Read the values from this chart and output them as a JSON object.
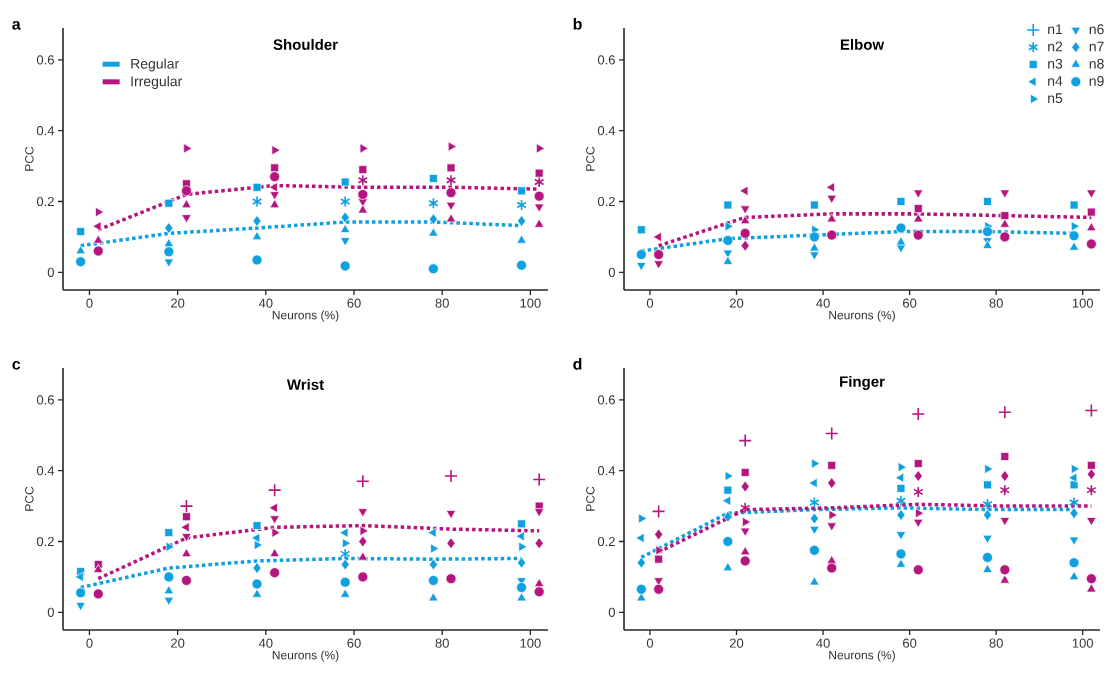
{
  "chart_data": [
    {
      "type": "scatter",
      "title": "Shoulder",
      "xlabel": "Neurons (%)",
      "ylabel": "PCC",
      "annotations": [
        "a"
      ],
      "legend": "top left",
      "xlim": [
        -6,
        104
      ],
      "ylim": [
        -0.05,
        0.69
      ],
      "xticks": [
        0,
        20,
        40,
        60,
        80,
        100
      ],
      "yticks": [
        0,
        0.2,
        0.4,
        0.6
      ],
      "series": [
        {
          "name": "Regular",
          "type": "line",
          "marker": "none",
          "line_style": "dotted",
          "color": "#0fa0e0",
          "x": [
            -2,
            18,
            38,
            58,
            78,
            98
          ],
          "values": [
            0.075,
            0.11,
            0.125,
            0.142,
            0.142,
            0.132
          ]
        },
        {
          "name": "Irregular",
          "type": "line",
          "marker": "none",
          "line_style": "dotted",
          "color": "#b4157f",
          "x": [
            2,
            22,
            42,
            62,
            82,
            102
          ],
          "values": [
            0.12,
            0.22,
            0.245,
            0.24,
            0.24,
            0.235
          ]
        },
        {
          "marker": "cross",
          "color": "#0fa0e0",
          "x": [
            38,
            58,
            78,
            98
          ],
          "values": [
            0.2,
            0.2,
            0.195,
            0.19
          ]
        },
        {
          "marker": "square",
          "color": "#0fa0e0",
          "x": [
            -2,
            18,
            38,
            58,
            78,
            98
          ],
          "values": [
            0.115,
            0.195,
            0.24,
            0.255,
            0.265,
            0.23
          ]
        },
        {
          "marker": "triangle-down",
          "color": "#0fa0e0",
          "x": [
            18,
            58
          ],
          "values": [
            0.03,
            0.09
          ]
        },
        {
          "marker": "diamond",
          "color": "#0fa0e0",
          "x": [
            18,
            38,
            58,
            78,
            98
          ],
          "values": [
            0.125,
            0.145,
            0.155,
            0.15,
            0.145
          ]
        },
        {
          "marker": "triangle",
          "color": "#0fa0e0",
          "x": [
            -2,
            18,
            38,
            58,
            78,
            98
          ],
          "values": [
            0.06,
            0.08,
            0.1,
            0.12,
            0.11,
            0.09
          ]
        },
        {
          "marker": "circle",
          "color": "#0fa0e0",
          "x": [
            -2,
            18,
            38,
            58,
            78,
            98
          ],
          "values": [
            0.03,
            0.058,
            0.035,
            0.018,
            0.01,
            0.02
          ]
        },
        {
          "marker": "cross",
          "color": "#b4157f",
          "x": [
            62,
            82,
            102
          ],
          "values": [
            0.26,
            0.26,
            0.255
          ]
        },
        {
          "marker": "square",
          "color": "#b4157f",
          "x": [
            22,
            42,
            62,
            82,
            102
          ],
          "values": [
            0.25,
            0.295,
            0.29,
            0.295,
            0.28
          ]
        },
        {
          "marker": "triangle-left",
          "color": "#b4157f",
          "x": [
            2,
            42
          ],
          "values": [
            0.13,
            0.24
          ]
        },
        {
          "marker": "triangle-right",
          "color": "#b4157f",
          "x": [
            2,
            22,
            42,
            62,
            82,
            102
          ],
          "values": [
            0.17,
            0.35,
            0.345,
            0.35,
            0.355,
            0.35
          ]
        },
        {
          "marker": "triangle-down",
          "color": "#b4157f",
          "x": [
            22,
            42,
            62,
            82,
            102
          ],
          "values": [
            0.155,
            0.22,
            0.2,
            0.19,
            0.185
          ]
        },
        {
          "marker": "triangle",
          "color": "#b4157f",
          "x": [
            2,
            22,
            42,
            62,
            82,
            102
          ],
          "values": [
            0.09,
            0.19,
            0.19,
            0.175,
            0.15,
            0.135
          ]
        },
        {
          "marker": "circle",
          "color": "#b4157f",
          "x": [
            2,
            22,
            42,
            62,
            82,
            102
          ],
          "values": [
            0.06,
            0.23,
            0.27,
            0.22,
            0.225,
            0.215
          ]
        }
      ]
    },
    {
      "type": "scatter",
      "title": "Elbow",
      "xlabel": "Neurons (%)",
      "ylabel": "PCC",
      "annotations": [
        "b"
      ],
      "legend": "top right",
      "xlim": [
        -6,
        104
      ],
      "ylim": [
        -0.05,
        0.69
      ],
      "xticks": [
        0,
        20,
        40,
        60,
        80,
        100
      ],
      "yticks": [
        0,
        0.2,
        0.4,
        0.6
      ],
      "series": [
        {
          "type": "line",
          "marker": "none",
          "line_style": "dotted",
          "color": "#0fa0e0",
          "x": [
            -2,
            18,
            38,
            58,
            78,
            98
          ],
          "values": [
            0.06,
            0.095,
            0.105,
            0.115,
            0.115,
            0.11
          ]
        },
        {
          "type": "line",
          "marker": "none",
          "line_style": "dotted",
          "color": "#b4157f",
          "x": [
            2,
            22,
            42,
            62,
            82,
            102
          ],
          "values": [
            0.075,
            0.155,
            0.165,
            0.165,
            0.16,
            0.155
          ]
        },
        {
          "name": "n1",
          "marker": "plus",
          "color": "#0fa0e0"
        },
        {
          "name": "n2",
          "marker": "cross",
          "color": "#0fa0e0"
        },
        {
          "name": "n3",
          "marker": "square",
          "color": "#0fa0e0",
          "x": [
            -2,
            18,
            38,
            58,
            78,
            98
          ],
          "values": [
            0.12,
            0.19,
            0.19,
            0.2,
            0.2,
            0.19
          ]
        },
        {
          "name": "n4",
          "marker": "triangle-left",
          "color": "#0fa0e0"
        },
        {
          "name": "n5",
          "marker": "triangle-right",
          "color": "#0fa0e0",
          "x": [
            18,
            38,
            78,
            98
          ],
          "values": [
            0.13,
            0.12,
            0.13,
            0.13
          ]
        },
        {
          "name": "n6",
          "marker": "triangle-down",
          "color": "#0fa0e0",
          "x": [
            -2,
            18,
            38,
            58,
            78
          ],
          "values": [
            0.02,
            0.055,
            0.05,
            0.07,
            0.09
          ]
        },
        {
          "name": "n7",
          "marker": "diamond",
          "color": "#0fa0e0"
        },
        {
          "name": "n8",
          "marker": "triangle",
          "color": "#0fa0e0",
          "x": [
            18,
            38,
            58,
            78,
            98
          ],
          "values": [
            0.03,
            0.068,
            0.085,
            0.075,
            0.07
          ]
        },
        {
          "name": "n9",
          "marker": "circle",
          "color": "#0fa0e0",
          "x": [
            -2,
            18,
            38,
            58,
            78,
            98
          ],
          "values": [
            0.05,
            0.09,
            0.1,
            0.125,
            0.115,
            0.103
          ]
        },
        {
          "marker": "square",
          "color": "#b4157f",
          "x": [
            62,
            82,
            102
          ],
          "values": [
            0.18,
            0.16,
            0.17
          ]
        },
        {
          "marker": "triangle-left",
          "color": "#b4157f",
          "x": [
            2,
            22,
            42
          ],
          "values": [
            0.1,
            0.23,
            0.24
          ]
        },
        {
          "marker": "triangle-down",
          "color": "#b4157f",
          "x": [
            2,
            22,
            42,
            62,
            82,
            102
          ],
          "values": [
            0.025,
            0.18,
            0.21,
            0.225,
            0.225,
            0.225
          ]
        },
        {
          "marker": "diamond",
          "color": "#b4157f",
          "x": [
            22
          ],
          "values": [
            0.075
          ]
        },
        {
          "marker": "triangle",
          "color": "#b4157f",
          "x": [
            22,
            42,
            62,
            82,
            102
          ],
          "values": [
            0.145,
            0.15,
            0.15,
            0.135,
            0.125
          ]
        },
        {
          "marker": "circle",
          "color": "#b4157f",
          "x": [
            2,
            22,
            42,
            62,
            82,
            102
          ],
          "values": [
            0.05,
            0.11,
            0.105,
            0.105,
            0.1,
            0.08
          ]
        }
      ]
    },
    {
      "type": "scatter",
      "title": "Wrist",
      "xlabel": "Neurons (%)",
      "ylabel": "PCC",
      "annotations": [
        "c"
      ],
      "xlim": [
        -6,
        104
      ],
      "ylim": [
        -0.05,
        0.69
      ],
      "xticks": [
        0,
        20,
        40,
        60,
        80,
        100
      ],
      "yticks": [
        0,
        0.2,
        0.4,
        0.6
      ],
      "series": [
        {
          "type": "line",
          "marker": "none",
          "line_style": "dotted",
          "color": "#0fa0e0",
          "x": [
            -2,
            18,
            38,
            58,
            78,
            98
          ],
          "values": [
            0.07,
            0.125,
            0.145,
            0.152,
            0.15,
            0.152
          ]
        },
        {
          "type": "line",
          "marker": "none",
          "line_style": "dotted",
          "color": "#b4157f",
          "x": [
            2,
            22,
            42,
            62,
            82,
            102
          ],
          "values": [
            0.095,
            0.21,
            0.24,
            0.245,
            0.235,
            0.23
          ]
        },
        {
          "marker": "cross",
          "color": "#0fa0e0",
          "x": [
            58
          ],
          "values": [
            0.165
          ]
        },
        {
          "marker": "square",
          "color": "#0fa0e0",
          "x": [
            -2,
            18,
            38,
            98
          ],
          "values": [
            0.115,
            0.225,
            0.245,
            0.25
          ]
        },
        {
          "marker": "triangle-left",
          "color": "#0fa0e0",
          "x": [
            -2,
            38,
            58,
            78,
            98
          ],
          "values": [
            0.1,
            0.21,
            0.225,
            0.225,
            0.215
          ]
        },
        {
          "marker": "triangle-right",
          "color": "#0fa0e0",
          "x": [
            18,
            38,
            58,
            78,
            98
          ],
          "values": [
            0.185,
            0.19,
            0.195,
            0.18,
            0.185
          ]
        },
        {
          "marker": "triangle-down",
          "color": "#0fa0e0",
          "x": [
            -2,
            18,
            98
          ],
          "values": [
            0.02,
            0.035,
            0.09
          ]
        },
        {
          "marker": "diamond",
          "color": "#0fa0e0",
          "x": [
            38,
            58,
            78,
            98
          ],
          "values": [
            0.125,
            0.135,
            0.135,
            0.14
          ]
        },
        {
          "marker": "triangle",
          "color": "#0fa0e0",
          "x": [
            18,
            38,
            58,
            78,
            98
          ],
          "values": [
            0.06,
            0.05,
            0.05,
            0.04,
            0.04
          ]
        },
        {
          "marker": "circle",
          "color": "#0fa0e0",
          "x": [
            -2,
            18,
            38,
            58,
            78,
            98
          ],
          "values": [
            0.055,
            0.1,
            0.08,
            0.085,
            0.09,
            0.07
          ]
        },
        {
          "marker": "plus",
          "color": "#b4157f",
          "x": [
            22,
            42,
            62,
            82,
            102
          ],
          "values": [
            0.3,
            0.345,
            0.37,
            0.385,
            0.375
          ]
        },
        {
          "marker": "square",
          "color": "#b4157f",
          "x": [
            2,
            22,
            102
          ],
          "values": [
            0.135,
            0.27,
            0.3
          ]
        },
        {
          "marker": "triangle-left",
          "color": "#b4157f",
          "x": [
            22,
            42
          ],
          "values": [
            0.24,
            0.295
          ]
        },
        {
          "marker": "triangle-right",
          "color": "#b4157f",
          "x": [
            42,
            62
          ],
          "values": [
            0.225,
            0.23
          ]
        },
        {
          "marker": "triangle-down",
          "color": "#b4157f",
          "x": [
            22,
            42,
            62,
            82,
            102
          ],
          "values": [
            0.215,
            0.265,
            0.285,
            0.28,
            0.285
          ]
        },
        {
          "marker": "diamond",
          "color": "#b4157f",
          "x": [
            62,
            82,
            102
          ],
          "values": [
            0.2,
            0.195,
            0.195
          ]
        },
        {
          "marker": "triangle",
          "color": "#b4157f",
          "x": [
            2,
            22,
            42,
            62,
            102
          ],
          "values": [
            0.12,
            0.165,
            0.165,
            0.155,
            0.08
          ]
        },
        {
          "marker": "circle",
          "color": "#b4157f",
          "x": [
            2,
            22,
            42,
            62,
            82,
            102
          ],
          "values": [
            0.052,
            0.09,
            0.112,
            0.1,
            0.095,
            0.058
          ]
        }
      ]
    },
    {
      "type": "scatter",
      "title": "Finger",
      "xlabel": "Neurons (%)",
      "ylabel": "PCC",
      "annotations": [
        "d"
      ],
      "xlim": [
        -6,
        104
      ],
      "ylim": [
        -0.05,
        0.69
      ],
      "xticks": [
        0,
        20,
        40,
        60,
        80,
        100
      ],
      "yticks": [
        0,
        0.2,
        0.4,
        0.6
      ],
      "series": [
        {
          "type": "line",
          "marker": "none",
          "line_style": "dotted",
          "color": "#0fa0e0",
          "x": [
            -2,
            18,
            38,
            58,
            78,
            98
          ],
          "values": [
            0.155,
            0.28,
            0.29,
            0.295,
            0.29,
            0.29
          ]
        },
        {
          "type": "line",
          "marker": "none",
          "line_style": "dotted",
          "color": "#b4157f",
          "x": [
            2,
            22,
            42,
            62,
            82,
            102
          ],
          "values": [
            0.17,
            0.29,
            0.295,
            0.305,
            0.3,
            0.3
          ]
        },
        {
          "marker": "cross",
          "color": "#0fa0e0",
          "x": [
            38,
            58,
            78,
            98
          ],
          "values": [
            0.31,
            0.315,
            0.305,
            0.31
          ]
        },
        {
          "marker": "square",
          "color": "#0fa0e0",
          "x": [
            18,
            58,
            78,
            98
          ],
          "values": [
            0.345,
            0.35,
            0.36,
            0.36
          ]
        },
        {
          "marker": "triangle-left",
          "color": "#0fa0e0",
          "x": [
            -2,
            18,
            38,
            58,
            98
          ],
          "values": [
            0.21,
            0.315,
            0.365,
            0.38,
            0.38
          ]
        },
        {
          "marker": "triangle-right",
          "color": "#0fa0e0",
          "x": [
            -2,
            18,
            38,
            58,
            78,
            98
          ],
          "values": [
            0.265,
            0.385,
            0.42,
            0.41,
            0.405,
            0.405
          ]
        },
        {
          "marker": "triangle-down",
          "color": "#0fa0e0",
          "x": [
            38,
            58,
            78,
            98
          ],
          "values": [
            0.235,
            0.22,
            0.21,
            0.205
          ]
        },
        {
          "marker": "diamond",
          "color": "#0fa0e0",
          "x": [
            -2,
            18,
            38,
            58,
            78,
            98
          ],
          "values": [
            0.14,
            0.27,
            0.265,
            0.275,
            0.275,
            0.28
          ]
        },
        {
          "marker": "triangle",
          "color": "#0fa0e0",
          "x": [
            -2,
            18,
            38,
            58,
            78,
            98
          ],
          "values": [
            0.04,
            0.125,
            0.085,
            0.135,
            0.12,
            0.1
          ]
        },
        {
          "marker": "circle",
          "color": "#0fa0e0",
          "x": [
            -2,
            18,
            38,
            58,
            78,
            98
          ],
          "values": [
            0.065,
            0.2,
            0.175,
            0.165,
            0.155,
            0.14
          ]
        },
        {
          "marker": "plus",
          "color": "#b4157f",
          "x": [
            2,
            22,
            42,
            62,
            82,
            102
          ],
          "values": [
            0.285,
            0.485,
            0.505,
            0.56,
            0.565,
            0.57
          ]
        },
        {
          "marker": "cross",
          "color": "#b4157f",
          "x": [
            22,
            62,
            82,
            102
          ],
          "values": [
            0.295,
            0.34,
            0.345,
            0.345
          ]
        },
        {
          "marker": "square",
          "color": "#b4157f",
          "x": [
            2,
            22,
            42,
            62,
            82,
            102
          ],
          "values": [
            0.15,
            0.395,
            0.415,
            0.42,
            0.44,
            0.415
          ]
        },
        {
          "marker": "triangle-right",
          "color": "#b4157f",
          "x": [
            2,
            22,
            42,
            62
          ],
          "values": [
            0.175,
            0.255,
            0.275,
            0.28
          ]
        },
        {
          "marker": "triangle-down",
          "color": "#b4157f",
          "x": [
            2,
            22,
            42,
            62,
            82,
            102
          ],
          "values": [
            0.09,
            0.23,
            0.245,
            0.255,
            0.26,
            0.26
          ]
        },
        {
          "marker": "diamond",
          "color": "#b4157f",
          "x": [
            2,
            22,
            42,
            62,
            82,
            102
          ],
          "values": [
            0.22,
            0.355,
            0.365,
            0.385,
            0.385,
            0.39
          ]
        },
        {
          "marker": "triangle",
          "color": "#b4157f",
          "x": [
            22,
            42,
            82,
            102
          ],
          "values": [
            0.17,
            0.145,
            0.09,
            0.065
          ]
        },
        {
          "marker": "circle",
          "color": "#b4157f",
          "x": [
            2,
            22,
            42,
            62,
            82,
            102
          ],
          "values": [
            0.065,
            0.145,
            0.125,
            0.12,
            0.12,
            0.095
          ]
        }
      ]
    }
  ]
}
